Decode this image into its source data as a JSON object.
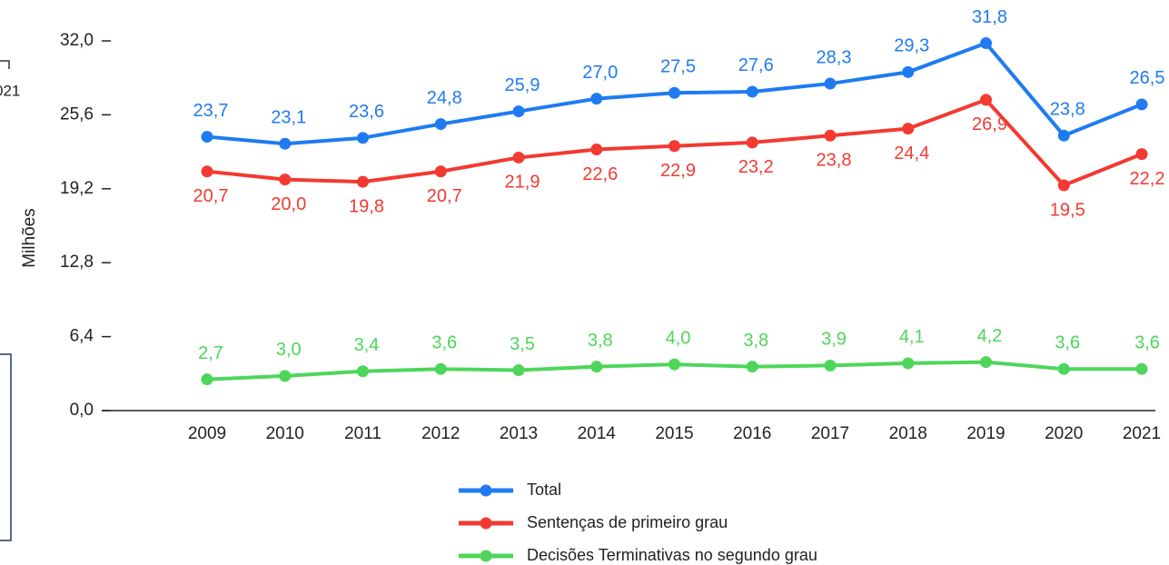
{
  "chart_data": {
    "type": "line",
    "y_label": "Milhões",
    "annotation": "021",
    "categories": [
      "2009",
      "2010",
      "2011",
      "2012",
      "2013",
      "2014",
      "2015",
      "2016",
      "2017",
      "2018",
      "2019",
      "2020",
      "2021"
    ],
    "ylim": [
      0,
      32
    ],
    "yticks": [
      {
        "value": 0,
        "label": "0,0"
      },
      {
        "value": 6.4,
        "label": "6,4"
      },
      {
        "value": 12.8,
        "label": "12,8"
      },
      {
        "value": 19.2,
        "label": "19,2"
      },
      {
        "value": 25.6,
        "label": "25,6"
      },
      {
        "value": 32,
        "label": "32,0"
      }
    ],
    "grid": false,
    "legend": "bottom",
    "series": [
      {
        "name": "Total",
        "color": "#1f7bf2",
        "values": [
          23.7,
          23.1,
          23.6,
          24.8,
          25.9,
          27.0,
          27.5,
          27.6,
          28.3,
          29.3,
          31.8,
          23.8,
          26.5
        ],
        "value_labels": [
          "23,7",
          "23,1",
          "23,6",
          "24,8",
          "25,9",
          "27,0",
          "27,5",
          "27,6",
          "28,3",
          "29,3",
          "31,8",
          "23,8",
          "26,5"
        ]
      },
      {
        "name": "Sentenças de primeiro grau",
        "color": "#f23a32",
        "values": [
          20.7,
          20.0,
          19.8,
          20.7,
          21.9,
          22.6,
          22.9,
          23.2,
          23.8,
          24.4,
          26.9,
          19.5,
          22.2
        ],
        "value_labels": [
          "20,7",
          "20,0",
          "19,8",
          "20,7",
          "21,9",
          "22,6",
          "22,9",
          "23,2",
          "23,8",
          "24,4",
          "26,9",
          "19,5",
          "22,2"
        ]
      },
      {
        "name": "Decisões Terminativas no segundo grau",
        "color": "#4ed65a",
        "values": [
          2.7,
          3.0,
          3.4,
          3.6,
          3.5,
          3.8,
          4.0,
          3.8,
          3.9,
          4.1,
          4.2,
          3.6,
          3.6
        ],
        "value_labels": [
          "2,7",
          "3,0",
          "3,4",
          "3,6",
          "3,5",
          "3,8",
          "4,0",
          "3,8",
          "3,9",
          "4,1",
          "4,2",
          "3,6",
          "3,6"
        ]
      }
    ]
  }
}
